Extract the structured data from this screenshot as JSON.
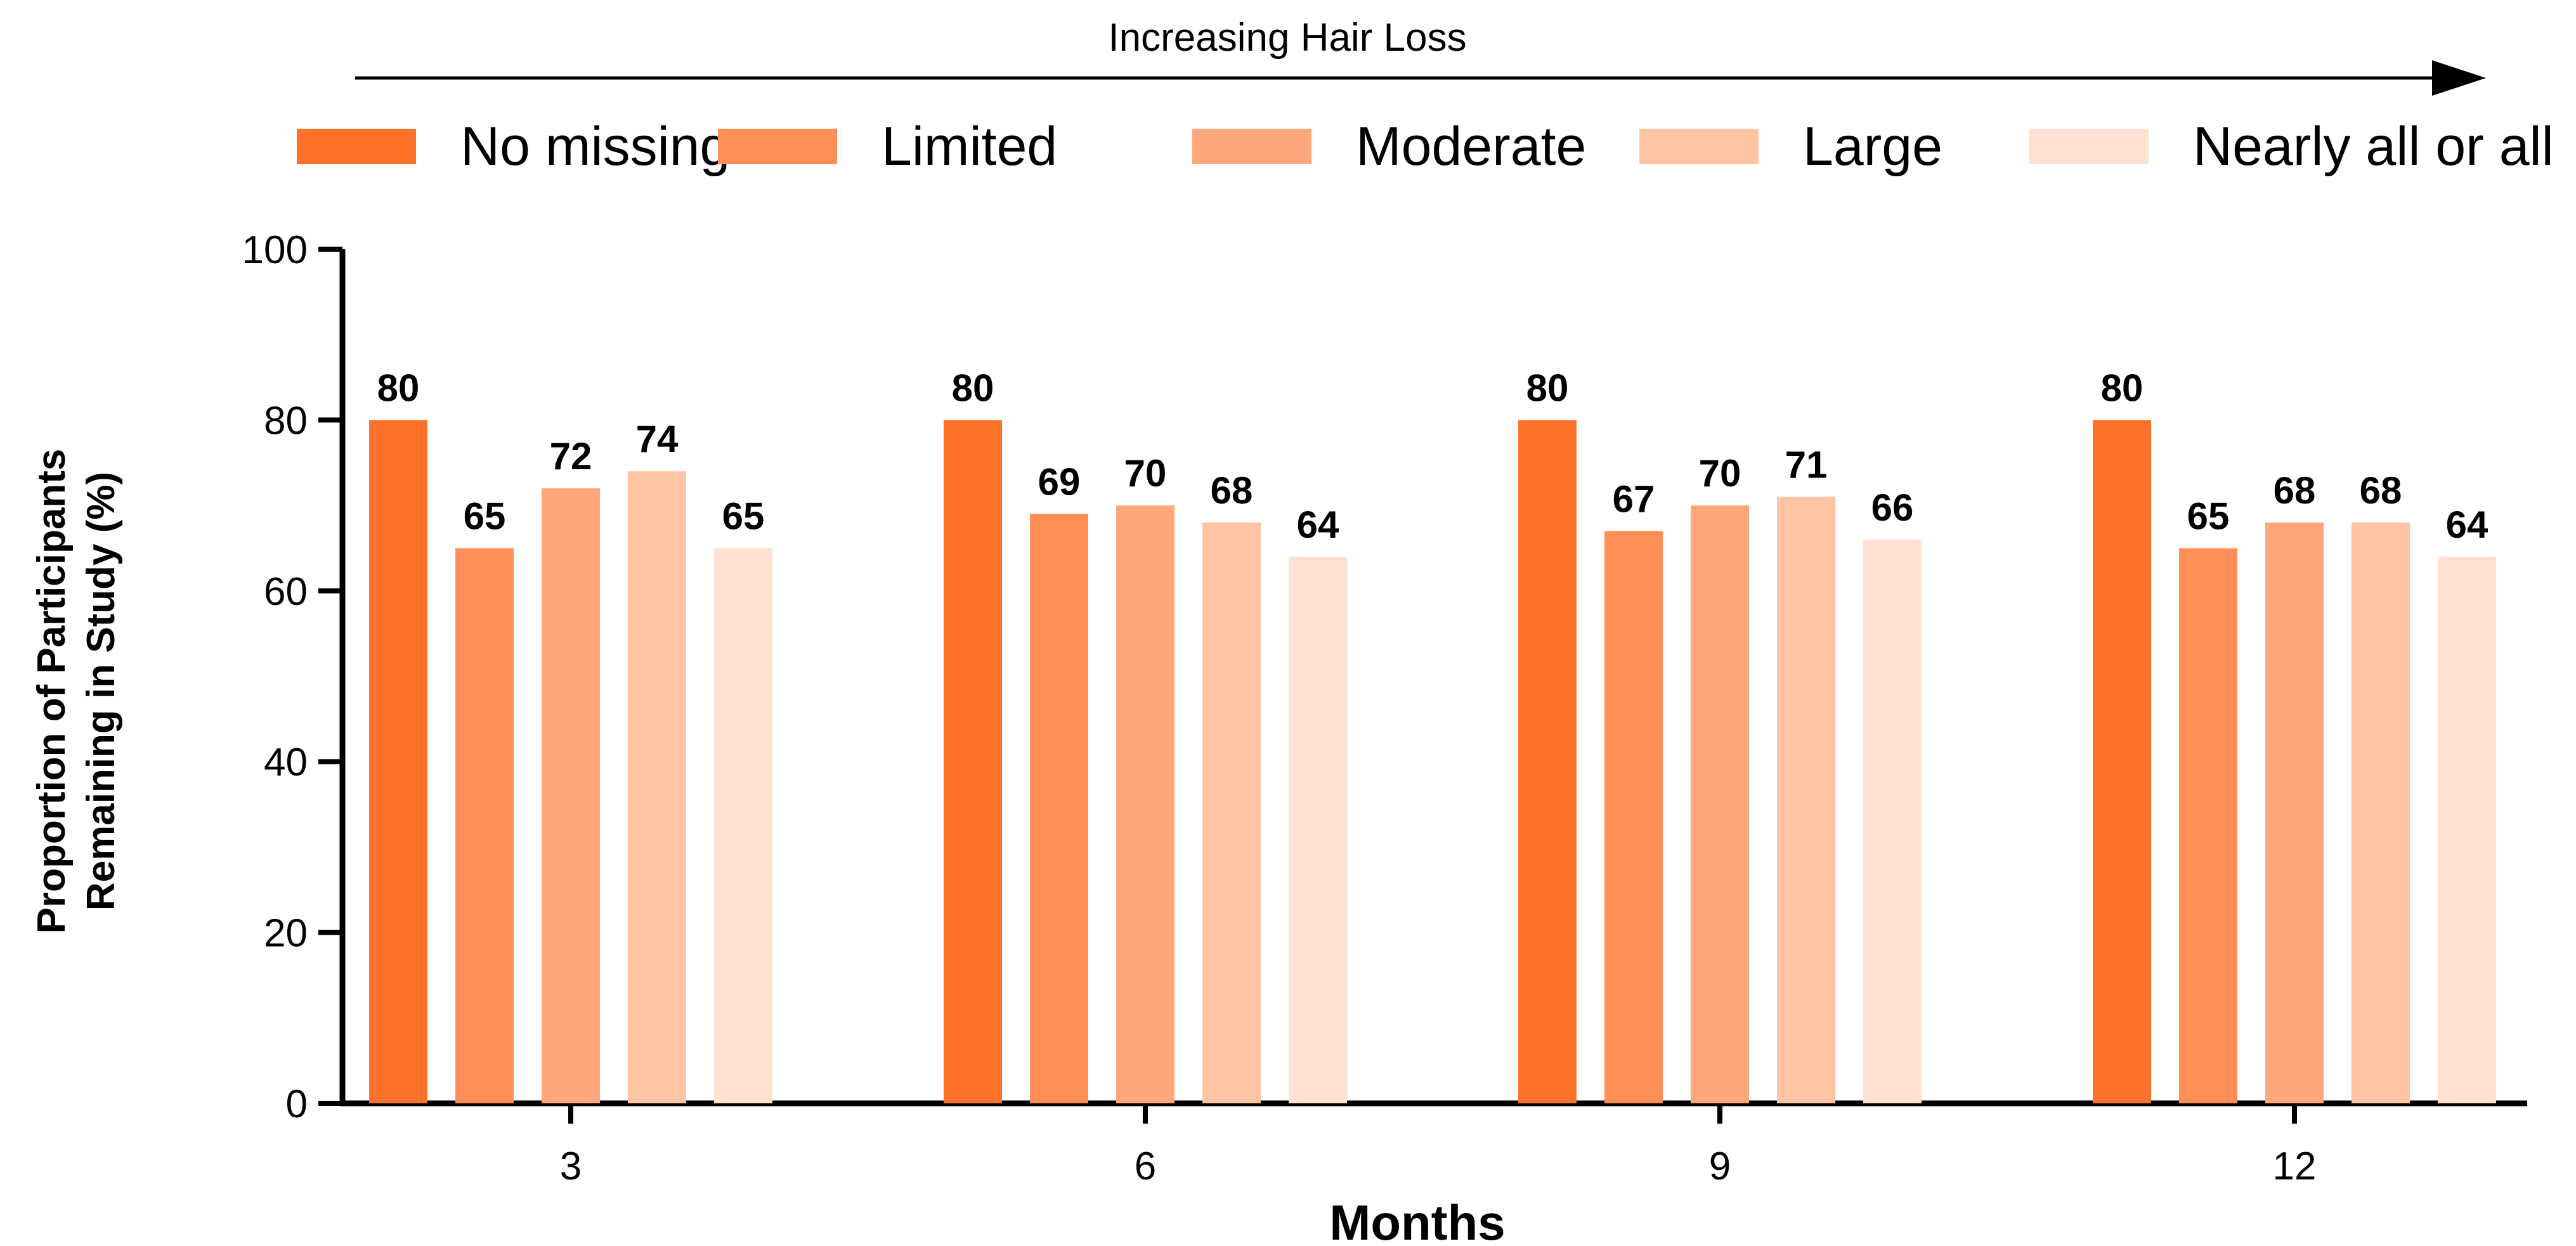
{
  "chart_data": {
    "type": "bar",
    "categories": [
      "3",
      "6",
      "9",
      "12"
    ],
    "series": [
      {
        "name": "No missing",
        "values": [
          80,
          80,
          80,
          80
        ],
        "color": "#FF7229"
      },
      {
        "name": "Limited",
        "values": [
          65,
          69,
          67,
          65
        ],
        "color": "#FF8F57"
      },
      {
        "name": "Moderate",
        "values": [
          72,
          70,
          70,
          68
        ],
        "color": "#FFA77A"
      },
      {
        "name": "Large",
        "values": [
          74,
          68,
          71,
          68
        ],
        "color": "#FFC4A3"
      },
      {
        "name": "Nearly all or all",
        "values": [
          65,
          64,
          66,
          64
        ],
        "color": "#FFE0D1"
      }
    ],
    "xlabel": "Months",
    "ylabel_lines": [
      "Proportion of Participants",
      "Remaining in Study (%)"
    ],
    "ylim": [
      0,
      100
    ],
    "yticks": [
      0,
      20,
      40,
      60,
      80,
      100
    ],
    "annotation": "Increasing Hair Loss",
    "legend_position": "top",
    "grid": false
  }
}
